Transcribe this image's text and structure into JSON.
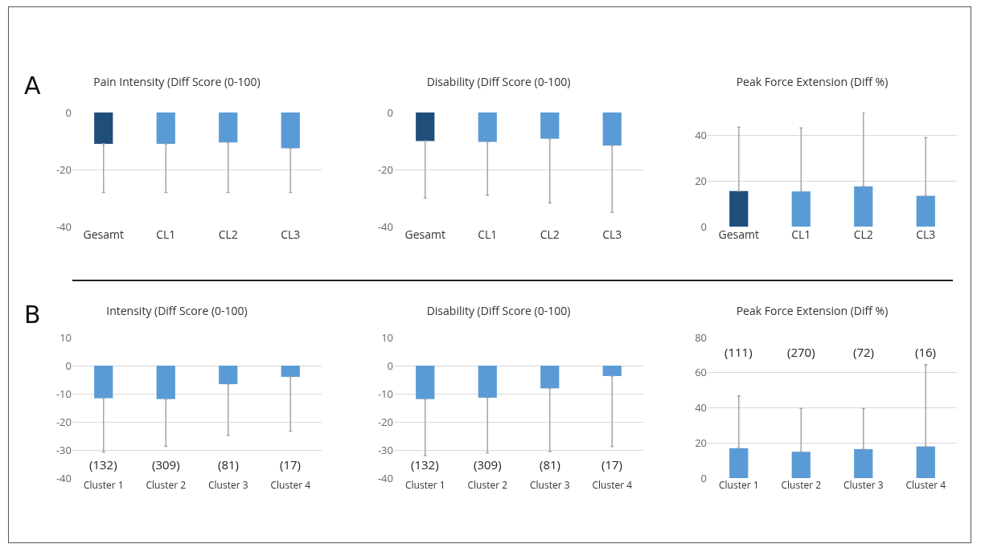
{
  "chart_data": [
    {
      "type": "bar",
      "title": "Pain Intensity (Diff Score (0-100)",
      "categories": [
        "Gesamt",
        "CL1",
        "CL2",
        "CL3"
      ],
      "values": [
        -11,
        -11,
        -10.5,
        -12.5
      ],
      "colors": [
        "#1f4e79",
        "#5b9bd5",
        "#5b9bd5",
        "#5b9bd5"
      ],
      "errors": [
        [
          -28,
          -11
        ],
        [
          -28,
          -11
        ],
        [
          -28,
          -10.5
        ],
        [
          -28,
          -12.5
        ]
      ],
      "ylim": [
        -40,
        0
      ],
      "yticks": [
        -40,
        -20,
        0
      ],
      "grid": "y",
      "annotations": [
        "A"
      ]
    },
    {
      "type": "bar",
      "title": "Disability (Diff Score (0-100)",
      "categories": [
        "Gesamt",
        "CL1",
        "CL2",
        "CL3"
      ],
      "values": [
        -10,
        -10.3,
        -9.2,
        -11.6
      ],
      "colors": [
        "#1f4e79",
        "#5b9bd5",
        "#5b9bd5",
        "#5b9bd5"
      ],
      "errors": [
        [
          -30,
          -10
        ],
        [
          -29,
          -10.3
        ],
        [
          -31.7,
          -9.2
        ],
        [
          -35,
          -11.6
        ]
      ],
      "ylim": [
        -40,
        0
      ],
      "yticks": [
        -40,
        -20,
        0
      ],
      "grid": "y"
    },
    {
      "type": "bar",
      "title": "Peak Force Extension (Diff %)",
      "categories": [
        "Gesamt",
        "CL1",
        "CL2",
        "CL3"
      ],
      "values": [
        15.6,
        15.4,
        17.6,
        13.5
      ],
      "colors": [
        "#1f4e79",
        "#5b9bd5",
        "#5b9bd5",
        "#5b9bd5"
      ],
      "errors": [
        [
          15.6,
          43.6
        ],
        [
          15.4,
          43.2
        ],
        [
          17.6,
          50
        ],
        [
          13.5,
          39
        ]
      ],
      "ylim": [
        0,
        50
      ],
      "yticks": [
        0,
        20,
        40
      ],
      "grid": "y"
    },
    {
      "type": "bar",
      "title": "Intensity (Diff Score (0-100)",
      "categories": [
        "Cluster 1",
        "Cluster 2",
        "Cluster 3",
        "Cluster 4"
      ],
      "values": [
        -11.6,
        -11.9,
        -6.6,
        -4
      ],
      "color": "#5b9bd5",
      "errors": [
        [
          -30.7,
          -11.6
        ],
        [
          -28.7,
          -11.9
        ],
        [
          -24.8,
          -6.6
        ],
        [
          -23.3,
          -4
        ]
      ],
      "ylim": [
        -40,
        10
      ],
      "yticks": [
        -40,
        -30,
        -20,
        -10,
        0,
        10
      ],
      "grid": "y",
      "annotations": [
        "B",
        "(132)",
        "(309)",
        "(81)",
        "(17)"
      ]
    },
    {
      "type": "bar",
      "title": "Disability (Diff Score (0-100)",
      "categories": [
        "Cluster 1",
        "Cluster 2",
        "Cluster 3",
        "Cluster 4"
      ],
      "values": [
        -11.9,
        -11.4,
        -8.1,
        -3.7
      ],
      "color": "#5b9bd5",
      "errors": [
        [
          -32,
          -11.9
        ],
        [
          -31,
          -11.4
        ],
        [
          -30.5,
          -8.1
        ],
        [
          -28.8,
          -3.7
        ]
      ],
      "ylim": [
        -40,
        10
      ],
      "yticks": [
        -40,
        -30,
        -20,
        -10,
        0,
        10
      ],
      "grid": "y",
      "annotations": [
        "(132)",
        "(309)",
        "(81)",
        "(17)"
      ]
    },
    {
      "type": "bar",
      "title": "Peak Force Extension (Diff %)",
      "categories": [
        "Cluster 1",
        "Cluster 2",
        "Cluster 3",
        "Cluster 4"
      ],
      "values": [
        17,
        15,
        16.5,
        18
      ],
      "color": "#5b9bd5",
      "errors": [
        [
          17,
          46.8
        ],
        [
          15,
          39.7
        ],
        [
          16.5,
          39.7
        ],
        [
          18,
          64.6
        ]
      ],
      "ylim": [
        0,
        80
      ],
      "yticks": [
        0,
        20,
        40,
        60,
        80
      ],
      "grid": "y",
      "annotations": [
        "(111)",
        "(270)",
        "(72)",
        "(16)"
      ]
    }
  ]
}
